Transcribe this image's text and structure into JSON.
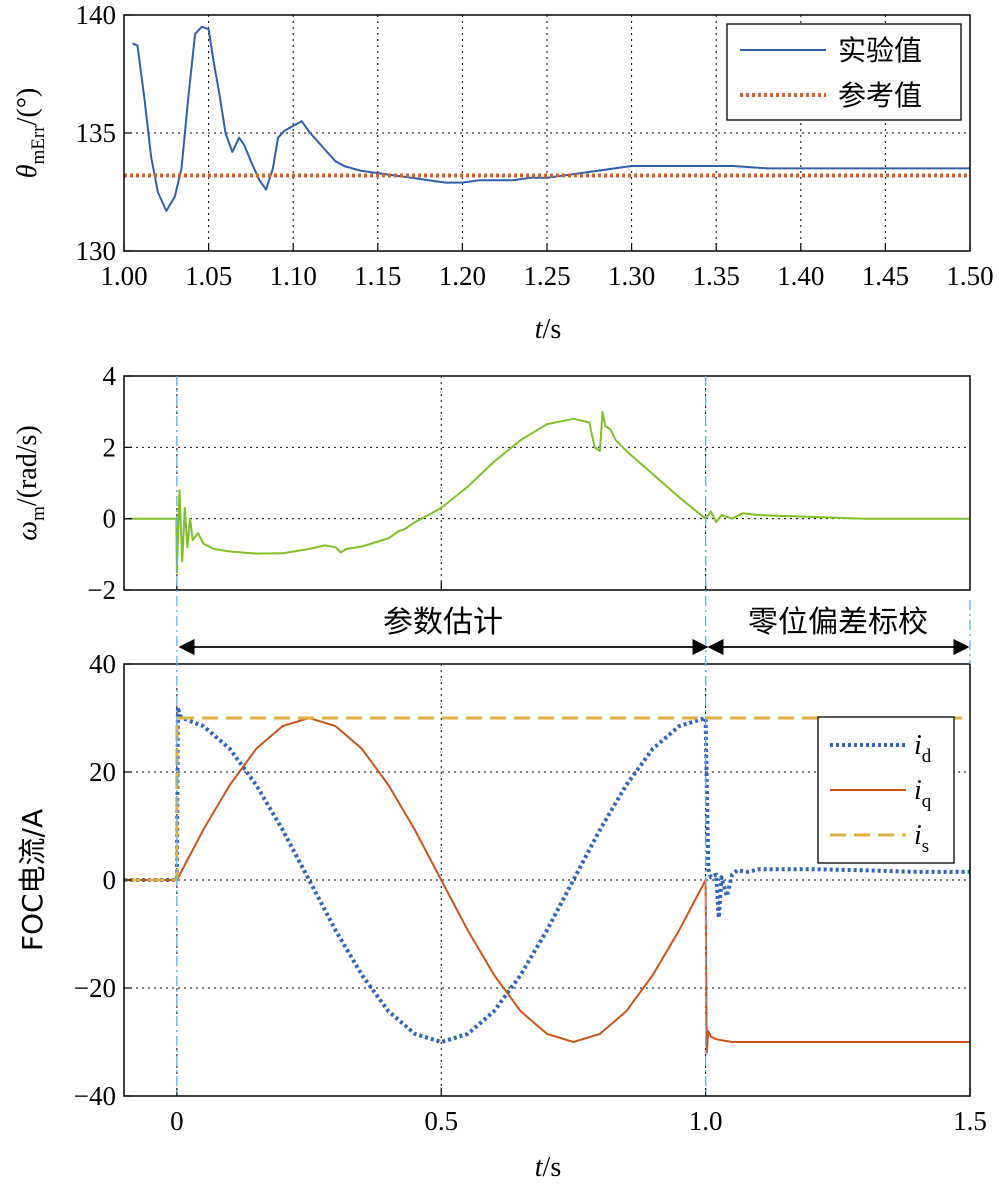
{
  "chart_data": [
    {
      "type": "line",
      "id": "theta",
      "title": "",
      "xlabel": "t/s",
      "xlabel_var": "t",
      "xlabel_unit": "/s",
      "ylabel_sym": "θ",
      "ylabel_sub": "mErr",
      "ylabel_unit": "/(°)",
      "xlim": [
        1.0,
        1.5
      ],
      "ylim": [
        130,
        140
      ],
      "xticks": [
        1.0,
        1.05,
        1.1,
        1.15,
        1.2,
        1.25,
        1.3,
        1.35,
        1.4,
        1.45,
        1.5
      ],
      "xtick_labels": [
        "1.00",
        "1.05",
        "1.10",
        "1.15",
        "1.20",
        "1.25",
        "1.30",
        "1.35",
        "1.40",
        "1.45",
        "1.50"
      ],
      "yticks": [
        130,
        135,
        140
      ],
      "ytick_labels": [
        "130",
        "135",
        "140"
      ],
      "grid": true,
      "legend_position": "top-right",
      "series": [
        {
          "name": "实验值",
          "color": "#2f5fa8",
          "style": "solid",
          "x": [
            1.005,
            1.008,
            1.012,
            1.016,
            1.02,
            1.025,
            1.03,
            1.034,
            1.038,
            1.042,
            1.046,
            1.05,
            1.053,
            1.056,
            1.06,
            1.064,
            1.068,
            1.071,
            1.075,
            1.08,
            1.084,
            1.088,
            1.091,
            1.095,
            1.1,
            1.105,
            1.11,
            1.115,
            1.12,
            1.125,
            1.13,
            1.14,
            1.15,
            1.16,
            1.17,
            1.18,
            1.19,
            1.2,
            1.21,
            1.22,
            1.23,
            1.24,
            1.25,
            1.26,
            1.27,
            1.28,
            1.29,
            1.3,
            1.32,
            1.34,
            1.36,
            1.38,
            1.4,
            1.42,
            1.44,
            1.46,
            1.48,
            1.5
          ],
          "y": [
            138.8,
            138.7,
            136.5,
            134.0,
            132.5,
            131.7,
            132.3,
            133.5,
            136.5,
            139.2,
            139.5,
            139.4,
            138.0,
            136.8,
            135.0,
            134.2,
            134.8,
            134.5,
            133.8,
            133.0,
            132.6,
            133.5,
            134.8,
            135.1,
            135.3,
            135.5,
            135.0,
            134.6,
            134.2,
            133.8,
            133.6,
            133.4,
            133.3,
            133.2,
            133.1,
            133.0,
            132.9,
            132.9,
            133.0,
            133.0,
            133.0,
            133.1,
            133.1,
            133.2,
            133.3,
            133.4,
            133.5,
            133.6,
            133.6,
            133.6,
            133.6,
            133.5,
            133.5,
            133.5,
            133.5,
            133.5,
            133.5,
            133.5
          ]
        },
        {
          "name": "参考值",
          "color": "#d4622a",
          "style": "dotted",
          "x": [
            1.0,
            1.5
          ],
          "y": [
            133.2,
            133.2
          ]
        }
      ]
    },
    {
      "type": "line",
      "id": "omega",
      "title": "",
      "xlabel": "",
      "ylabel_sym": "ω",
      "ylabel_sub": "m",
      "ylabel_unit": "/(rad/s)",
      "xlim": [
        -0.1,
        1.5
      ],
      "ylim": [
        -2,
        4
      ],
      "yticks": [
        -2,
        0,
        2,
        4
      ],
      "ytick_labels": [
        "−2",
        "0",
        "2",
        "4"
      ],
      "xgrid": [
        0,
        0.5,
        1.0
      ],
      "grid": true,
      "series": [
        {
          "name": "ω_m",
          "color": "#7fbf2a",
          "style": "solid",
          "x": [
            -0.1,
            -0.001,
            0.0,
            0.005,
            0.01,
            0.015,
            0.02,
            0.025,
            0.03,
            0.04,
            0.05,
            0.07,
            0.1,
            0.15,
            0.2,
            0.25,
            0.28,
            0.3,
            0.31,
            0.32,
            0.35,
            0.4,
            0.42,
            0.43,
            0.45,
            0.5,
            0.55,
            0.6,
            0.65,
            0.7,
            0.75,
            0.78,
            0.79,
            0.8,
            0.805,
            0.81,
            0.82,
            0.83,
            0.85,
            0.9,
            0.95,
            1.0,
            1.01,
            1.02,
            1.03,
            1.05,
            1.07,
            1.1,
            1.2,
            1.3,
            1.4,
            1.5
          ],
          "y": [
            0.0,
            0.0,
            -1.5,
            0.8,
            -1.2,
            0.3,
            -0.8,
            0.0,
            -0.6,
            -0.4,
            -0.7,
            -0.85,
            -0.92,
            -0.98,
            -0.97,
            -0.85,
            -0.75,
            -0.8,
            -0.95,
            -0.85,
            -0.78,
            -0.55,
            -0.35,
            -0.3,
            -0.1,
            0.3,
            0.9,
            1.6,
            2.2,
            2.65,
            2.8,
            2.7,
            2.0,
            1.9,
            3.0,
            2.6,
            2.5,
            2.2,
            1.9,
            1.25,
            0.6,
            0.0,
            0.2,
            -0.1,
            0.1,
            0.0,
            0.15,
            0.1,
            0.05,
            0.0,
            0.0,
            0.0
          ]
        }
      ]
    },
    {
      "type": "line",
      "id": "current",
      "title": "",
      "xlabel": "t/s",
      "xlabel_var": "t",
      "xlabel_unit": "/s",
      "ylabel": "FOC电流/A",
      "xlim": [
        -0.1,
        1.5
      ],
      "ylim": [
        -40,
        40
      ],
      "xticks": [
        0,
        0.5,
        1.0,
        1.5
      ],
      "xtick_labels": [
        "0",
        "0.5",
        "1.0",
        "1.5"
      ],
      "yticks": [
        -40,
        -20,
        0,
        20,
        40
      ],
      "ytick_labels": [
        "−40",
        "−20",
        "0",
        "20",
        "40"
      ],
      "grid": true,
      "legend_position": "top-right",
      "series": [
        {
          "name": "i",
          "sub": "d",
          "color": "#2f64b7",
          "style": "dotted",
          "x": [
            -0.1,
            0.0,
            0.002,
            0.005,
            0.01,
            0.05,
            0.1,
            0.15,
            0.2,
            0.25,
            0.3,
            0.35,
            0.4,
            0.45,
            0.5,
            0.55,
            0.6,
            0.65,
            0.7,
            0.75,
            0.8,
            0.85,
            0.9,
            0.95,
            1.0,
            1.005,
            1.01,
            1.02,
            1.025,
            1.03,
            1.04,
            1.05,
            1.06,
            1.08,
            1.1,
            1.15,
            1.2,
            1.3,
            1.4,
            1.5
          ],
          "y": [
            0,
            0,
            32,
            30.5,
            30,
            28.5,
            24.3,
            17.6,
            9.3,
            0.0,
            -9.3,
            -17.6,
            -24.3,
            -28.5,
            -30,
            -28.5,
            -24.3,
            -17.6,
            -9.3,
            0.0,
            9.3,
            17.6,
            24.3,
            28.5,
            30,
            2,
            0.5,
            1,
            -7,
            0.5,
            -3,
            1,
            1.8,
            1.5,
            2,
            2,
            2,
            1.8,
            1.5,
            1.5
          ]
        },
        {
          "name": "i",
          "sub": "q",
          "color": "#c9541c",
          "style": "solid",
          "x": [
            -0.1,
            0.0,
            0.05,
            0.1,
            0.15,
            0.2,
            0.25,
            0.3,
            0.35,
            0.4,
            0.45,
            0.5,
            0.55,
            0.6,
            0.65,
            0.7,
            0.75,
            0.8,
            0.85,
            0.9,
            0.95,
            1.0,
            1.002,
            1.005,
            1.01,
            1.02,
            1.05,
            1.1,
            1.2,
            1.3,
            1.4,
            1.5
          ],
          "y": [
            0,
            0,
            9.3,
            17.6,
            24.3,
            28.5,
            30,
            28.5,
            24.3,
            17.6,
            9.3,
            0,
            -9.3,
            -17.6,
            -24.3,
            -28.5,
            -30,
            -28.5,
            -24.3,
            -17.6,
            -9.3,
            0,
            -32,
            -28,
            -29,
            -29.5,
            -30,
            -30,
            -30,
            -30,
            -30,
            -30
          ]
        },
        {
          "name": "i",
          "sub": "s",
          "color": "#e0b040",
          "style": "dashed",
          "x": [
            -0.1,
            0.0,
            0.0,
            1.0,
            1.0,
            1.5
          ],
          "y": [
            0,
            0,
            30,
            30,
            30,
            30
          ]
        }
      ],
      "annotations": [
        {
          "text": "参数估计",
          "from": 0.0,
          "to": 1.0
        },
        {
          "text": "零位偏差标校",
          "from": 1.0,
          "to": 1.5
        }
      ]
    }
  ]
}
